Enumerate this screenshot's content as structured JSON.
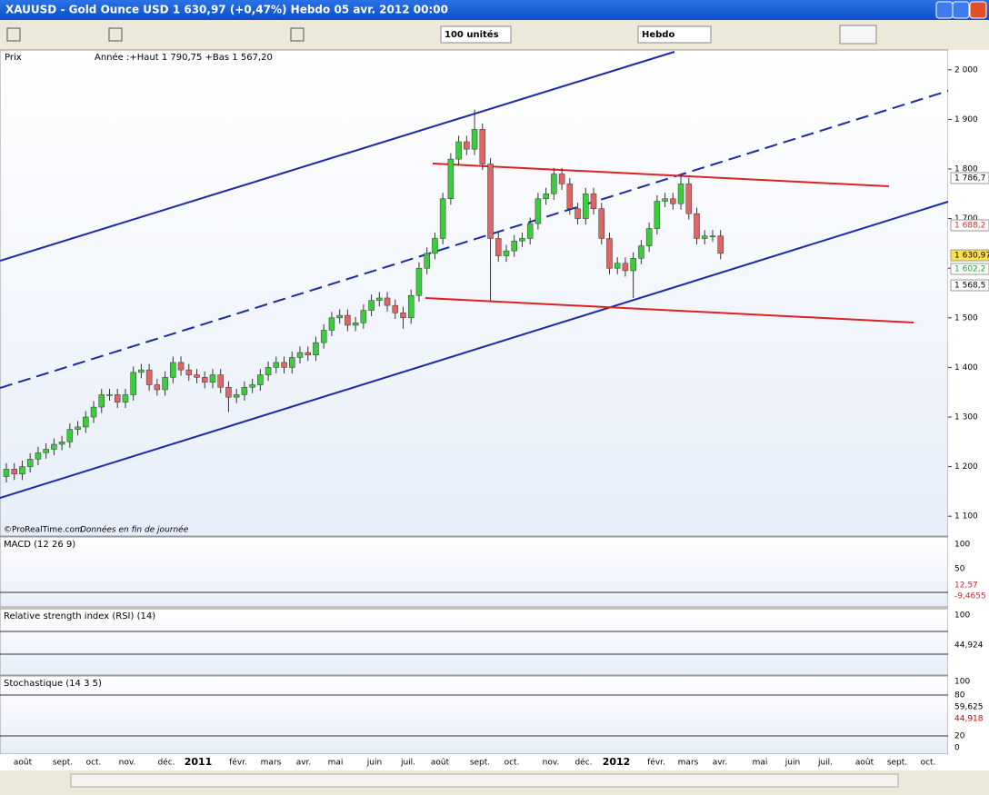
{
  "window": {
    "title": "XAUUSD - Gold Ounce USD   1 630,97 (+0,47%)   Hebdo  05 avr. 2012 00:00",
    "units": "100 unités",
    "period": "Hebdo"
  },
  "chart_data": {
    "type": "candlestick",
    "panel": "Prix",
    "annotation": "Année :+Haut 1 790,75 +Bas 1 567,20",
    "source": "©ProRealTime.com",
    "note": "Données en fin de journée",
    "open": [
      1180,
      1195,
      1185,
      1200,
      1215,
      1228,
      1235,
      1245,
      1250,
      1275,
      1280,
      1300,
      1320,
      1345,
      1345,
      1330,
      1345,
      1390,
      1395,
      1365,
      1355,
      1380,
      1410,
      1395,
      1385,
      1380,
      1370,
      1385,
      1360,
      1340,
      1345,
      1360,
      1365,
      1385,
      1400,
      1410,
      1400,
      1420,
      1430,
      1425,
      1450,
      1475,
      1500,
      1505,
      1485,
      1490,
      1515,
      1535,
      1540,
      1525,
      1510,
      1500,
      1545,
      1600,
      1630,
      1660,
      1740,
      1820,
      1855,
      1840,
      1880,
      1810,
      1660,
      1625,
      1635,
      1655,
      1660,
      1690,
      1740,
      1750,
      1790,
      1770,
      1720,
      1700,
      1750,
      1720,
      1660,
      1600,
      1610,
      1595,
      1620,
      1645,
      1680,
      1735,
      1740,
      1730,
      1770,
      1710,
      1660,
      1665,
      1665
    ],
    "high": [
      1207,
      1207,
      1212,
      1227,
      1240,
      1247,
      1257,
      1262,
      1287,
      1292,
      1312,
      1332,
      1357,
      1357,
      1357,
      1357,
      1402,
      1407,
      1407,
      1377,
      1392,
      1422,
      1422,
      1407,
      1397,
      1392,
      1397,
      1397,
      1372,
      1357,
      1372,
      1377,
      1397,
      1412,
      1422,
      1422,
      1432,
      1442,
      1442,
      1462,
      1487,
      1512,
      1517,
      1517,
      1502,
      1527,
      1547,
      1552,
      1552,
      1537,
      1522,
      1557,
      1612,
      1642,
      1672,
      1752,
      1832,
      1867,
      1867,
      1920,
      1892,
      1822,
      1672,
      1647,
      1667,
      1672,
      1702,
      1752,
      1762,
      1802,
      1802,
      1782,
      1732,
      1762,
      1762,
      1732,
      1672,
      1622,
      1622,
      1632,
      1657,
      1692,
      1747,
      1752,
      1752,
      1790,
      1782,
      1722,
      1677,
      1677,
      1677
    ],
    "low": [
      1168,
      1173,
      1173,
      1188,
      1203,
      1216,
      1223,
      1233,
      1238,
      1263,
      1268,
      1288,
      1308,
      1333,
      1318,
      1318,
      1333,
      1378,
      1353,
      1343,
      1343,
      1368,
      1383,
      1373,
      1368,
      1358,
      1358,
      1348,
      1310,
      1328,
      1333,
      1348,
      1353,
      1373,
      1388,
      1388,
      1388,
      1408,
      1413,
      1413,
      1438,
      1463,
      1488,
      1473,
      1473,
      1478,
      1503,
      1523,
      1513,
      1498,
      1478,
      1488,
      1533,
      1588,
      1618,
      1648,
      1728,
      1808,
      1828,
      1828,
      1798,
      1535,
      1613,
      1613,
      1623,
      1643,
      1648,
      1678,
      1728,
      1738,
      1758,
      1708,
      1688,
      1688,
      1708,
      1648,
      1588,
      1588,
      1583,
      1540,
      1608,
      1633,
      1668,
      1723,
      1718,
      1718,
      1698,
      1648,
      1648,
      1653,
      1618
    ],
    "close": [
      1195,
      1185,
      1200,
      1215,
      1228,
      1235,
      1245,
      1250,
      1275,
      1280,
      1300,
      1320,
      1345,
      1345,
      1330,
      1345,
      1390,
      1395,
      1365,
      1355,
      1380,
      1410,
      1395,
      1385,
      1380,
      1370,
      1385,
      1360,
      1340,
      1345,
      1360,
      1365,
      1385,
      1400,
      1410,
      1400,
      1420,
      1430,
      1425,
      1450,
      1475,
      1500,
      1505,
      1485,
      1490,
      1515,
      1535,
      1540,
      1525,
      1510,
      1500,
      1545,
      1600,
      1630,
      1660,
      1740,
      1820,
      1855,
      1840,
      1880,
      1810,
      1660,
      1625,
      1635,
      1655,
      1660,
      1690,
      1740,
      1750,
      1790,
      1770,
      1720,
      1700,
      1750,
      1720,
      1660,
      1600,
      1610,
      1595,
      1620,
      1645,
      1680,
      1735,
      1740,
      1730,
      1770,
      1710,
      1660,
      1665,
      1665,
      1630
    ],
    "up_color": "#3ccc3c",
    "down_color": "#e06666",
    "ylim": [
      1060,
      2040
    ],
    "yticks": [
      {
        "value": 1100,
        "label": "1 100"
      },
      {
        "value": 1200,
        "label": "1 200"
      },
      {
        "value": 1300,
        "label": "1 300"
      },
      {
        "value": 1400,
        "label": "1 400"
      },
      {
        "value": 1500,
        "label": "1 500"
      },
      {
        "value": 1600,
        "label": "1 600"
      },
      {
        "value": 1700,
        "label": "1 700"
      },
      {
        "value": 1800,
        "label": "1 800"
      },
      {
        "value": 1900,
        "label": "1 900"
      },
      {
        "value": 2000,
        "label": "2 000"
      }
    ],
    "price_labels": [
      "1 786,7",
      "1 688,2",
      "1 630,97",
      "1 602,2",
      "1 568,5"
    ],
    "months": [
      "août",
      "sept.",
      "oct.",
      "nov.",
      "déc.",
      "2011",
      "févr.",
      "mars",
      "avr.",
      "mai",
      "juin",
      "juil.",
      "août",
      "sept.",
      "oct.",
      "nov.",
      "déc.",
      "2012",
      "févr.",
      "mars",
      "avr.",
      "mai",
      "juin",
      "juil.",
      "août",
      "sept.",
      "oct."
    ]
  },
  "indicators": [
    {
      "name": "MACD (12 26 9)",
      "axis": [
        "100",
        "50"
      ],
      "labels": [
        "12,57",
        "-9,4655"
      ]
    },
    {
      "name": "Relative strength index (RSI) (14)",
      "axis": [
        "100"
      ],
      "labels": [
        "44,924"
      ]
    },
    {
      "name": "Stochastique (14 3 5)",
      "axis": [
        "100",
        "80",
        "20",
        "0"
      ],
      "labels": [
        "59,625",
        "44,918"
      ]
    }
  ]
}
